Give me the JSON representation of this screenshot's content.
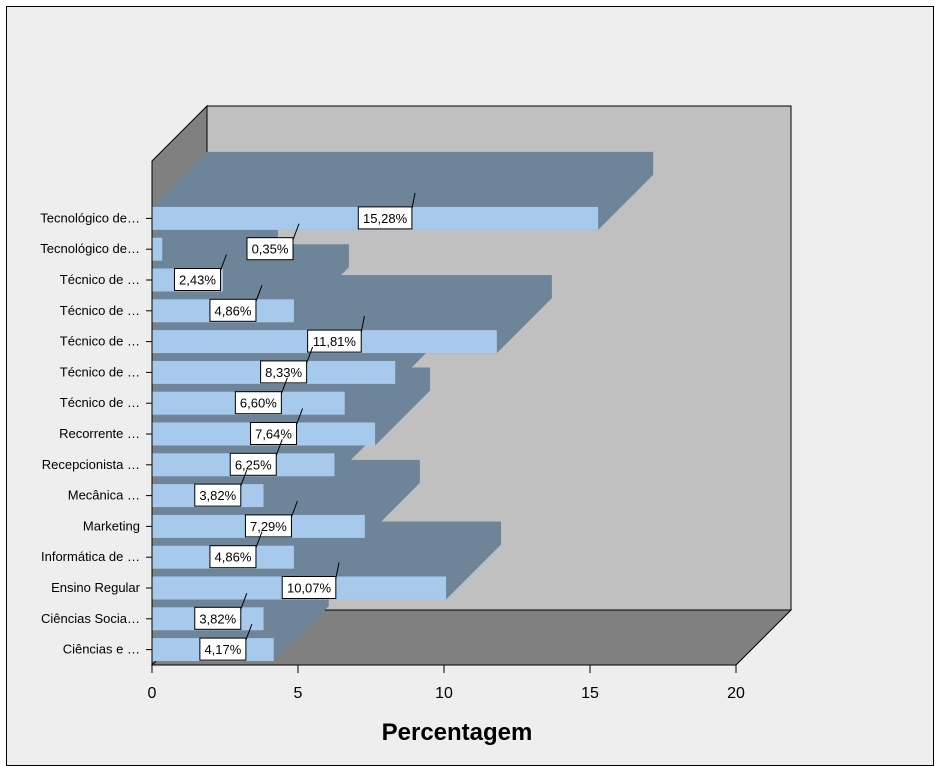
{
  "chart_data": {
    "type": "bar",
    "orientation": "horizontal",
    "three_d": true,
    "categories": [
      "Tecnológico de…",
      "Tecnológico de…",
      "Técnico de …",
      "Técnico de …",
      "Técnico de …",
      "Técnico de …",
      "Técnico de …",
      "Recorrente …",
      "Recepcionista …",
      "Mecânica …",
      "Marketing",
      "Informática de …",
      "Ensino Regular",
      "Ciências Socia…",
      "Ciências e …"
    ],
    "values": [
      15.28,
      0.35,
      2.43,
      4.86,
      11.81,
      8.33,
      6.6,
      7.64,
      6.25,
      3.82,
      7.29,
      4.86,
      10.07,
      3.82,
      4.17
    ],
    "data_labels": [
      "15,28%",
      "0,35%",
      "2,43%",
      "4,86%",
      "11,81%",
      "8,33%",
      "6,60%",
      "7,64%",
      "6,25%",
      "3,82%",
      "7,29%",
      "4,86%",
      "10,07%",
      "3,82%",
      "4,17%"
    ],
    "xlabel": "Percentagem",
    "xlim": [
      0,
      20
    ],
    "xticks": [
      "0",
      "5",
      "10",
      "15",
      "20"
    ],
    "colors": {
      "bar_front": "#a6c9ec",
      "bar_shadow": "#6d8499",
      "wall": "#c0c0c0",
      "floor": "#808080",
      "side_wall": "#808080",
      "background": "#eeeeee"
    }
  }
}
